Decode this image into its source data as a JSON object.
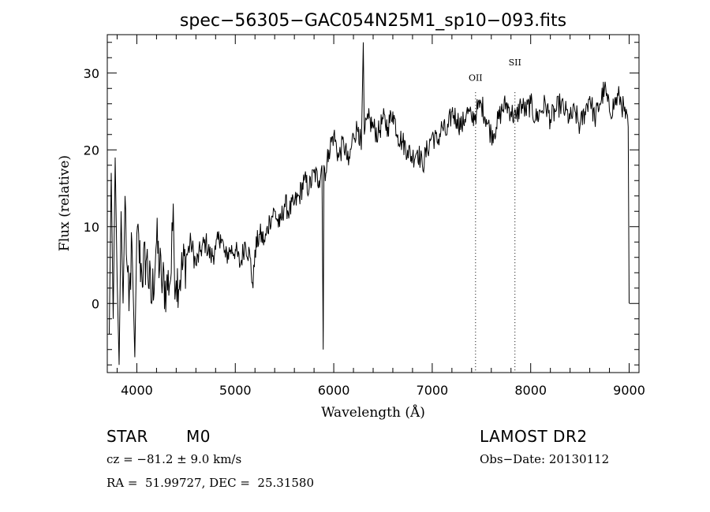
{
  "chart_data": {
    "type": "line",
    "title": "spec−56305−GAC054N25M1_sp10−093.fits",
    "xlabel": "Wavelength (Å)",
    "ylabel": "Flux (relative)",
    "xlim": [
      3700,
      9100
    ],
    "ylim": [
      -9,
      35
    ],
    "x_ticks": [
      4000,
      5000,
      6000,
      7000,
      8000,
      9000
    ],
    "y_ticks": [
      0,
      10,
      20,
      30
    ],
    "grid": false,
    "line_color": "#000000",
    "series": [
      {
        "x": [
          3720,
          3740,
          3760,
          3780,
          3800,
          3820,
          3840,
          3860,
          3880,
          3900,
          3920,
          3950,
          3980,
          4000,
          4050,
          4100,
          4150,
          4200,
          4250,
          4300,
          4350,
          4370,
          4380,
          4400,
          4450,
          4500,
          4550,
          4600,
          4650,
          4700,
          4750,
          4800,
          4850,
          4900,
          4950,
          5000,
          5050,
          5100,
          5150,
          5180,
          5200,
          5250,
          5300,
          5350,
          5400,
          5450,
          5500,
          5550,
          5600,
          5650,
          5700,
          5750,
          5800,
          5850,
          5880,
          5893,
          5900,
          5920,
          5950,
          6000,
          6050,
          6100,
          6150,
          6200,
          6250,
          6280,
          6300,
          6310,
          6350,
          6400,
          6450,
          6500,
          6550,
          6600,
          6650,
          6700,
          6750,
          6800,
          6850,
          6900,
          6950,
          7000,
          7050,
          7100,
          7150,
          7200,
          7250,
          7300,
          7350,
          7400,
          7450,
          7500,
          7550,
          7600,
          7650,
          7700,
          7750,
          7800,
          7850,
          7900,
          7950,
          8000,
          8050,
          8100,
          8150,
          8200,
          8250,
          8300,
          8350,
          8400,
          8450,
          8500,
          8550,
          8600,
          8650,
          8700,
          8750,
          8800,
          8850,
          8900,
          8950,
          8990,
          9000
        ],
        "y": [
          -4,
          17,
          -2,
          19,
          3,
          -8,
          12,
          0,
          14,
          5,
          -1,
          8,
          -7,
          9,
          4,
          6,
          0,
          8,
          3,
          2,
          4,
          13,
          5,
          3,
          4,
          6,
          8,
          5,
          7,
          8,
          6,
          7,
          9,
          6,
          7,
          7,
          5,
          8,
          6,
          2,
          7,
          9,
          8,
          11,
          12,
          10,
          13,
          12,
          13,
          14,
          16,
          15,
          17,
          16,
          18,
          -6,
          18,
          17,
          20,
          22,
          19,
          21,
          18,
          22,
          23,
          20,
          34,
          22,
          24,
          23,
          22,
          24,
          23,
          25,
          22,
          21,
          20,
          19,
          20,
          18,
          20,
          22,
          21,
          23,
          22,
          25,
          24,
          23,
          25,
          24,
          25,
          26,
          24,
          22,
          23,
          25,
          26,
          25,
          24,
          26,
          25,
          26,
          24,
          25,
          26,
          24,
          25,
          26,
          25,
          24,
          25,
          23,
          25,
          27,
          24,
          26,
          28,
          25,
          26,
          27,
          25,
          23,
          0
        ]
      }
    ],
    "lines": [
      {
        "label": "OII",
        "x": 7440
      },
      {
        "label": "SII",
        "x": 7840
      }
    ]
  },
  "info": {
    "object_class": "STAR",
    "subclass": "M0",
    "survey": "LAMOST DR2",
    "cz": "cz = −81.2 ± 9.0 km/s",
    "obs_date": "Obs−Date: 20130112",
    "coords": "RA =  51.99727, DEC =  25.31580"
  }
}
